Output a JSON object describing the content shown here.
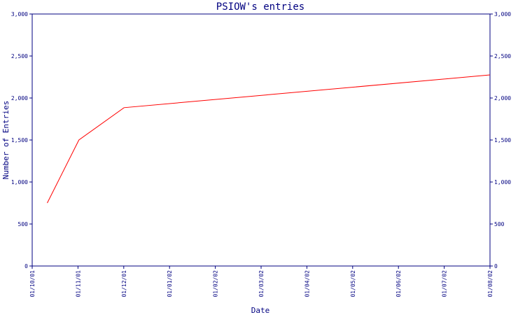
{
  "chart_data": {
    "type": "line",
    "title": "PSIOW's entries",
    "xlabel": "Date",
    "ylabel": "Number of Entries",
    "x_ticks": [
      "01/10/01",
      "01/11/01",
      "01/12/01",
      "01/01/02",
      "01/02/02",
      "01/03/02",
      "01/04/02",
      "01/05/02",
      "01/06/02",
      "01/07/02",
      "01/08/02"
    ],
    "y_ticks": [
      "0",
      "500",
      "1,000",
      "1,500",
      "2,000",
      "2,500",
      "3,000"
    ],
    "ylim": [
      0,
      3000
    ],
    "xlim": [
      "2001-10-01",
      "2002-08-01"
    ],
    "grid": false,
    "series": [
      {
        "color": "#ff0000",
        "points": [
          {
            "x": "2001-10-11",
            "y": 750
          },
          {
            "x": "2001-11-01",
            "y": 1500
          },
          {
            "x": "2001-12-01",
            "y": 1885
          },
          {
            "x": "2002-08-01",
            "y": 2275
          }
        ]
      }
    ],
    "colors": {
      "axis": "#000080",
      "series": "#ff0000",
      "background": "#ffffff"
    }
  }
}
